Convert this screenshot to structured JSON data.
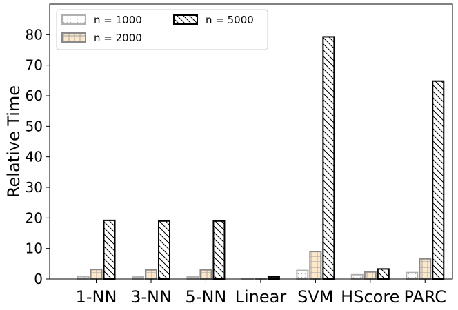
{
  "chart_data": {
    "type": "bar",
    "categories": [
      "1-NN",
      "3-NN",
      "5-NN",
      "Linear",
      "SVM",
      "HScore",
      "PARC"
    ],
    "series": [
      {
        "name": "n = 1000",
        "values": [
          0.8,
          0.7,
          0.7,
          0.1,
          2.8,
          1.4,
          2.1
        ],
        "fill": "#ffffff",
        "stroke": "#b0b0b0",
        "hatch": "dots"
      },
      {
        "name": "n = 2000",
        "values": [
          3.1,
          3.0,
          3.0,
          0.2,
          9.0,
          2.4,
          6.6
        ],
        "fill": "#fde8cc",
        "stroke": "#8a8a8a",
        "hatch": "grid"
      },
      {
        "name": "n = 5000",
        "values": [
          19.2,
          19.0,
          19.0,
          0.7,
          79.3,
          3.3,
          64.8
        ],
        "fill": "#ffffff",
        "stroke": "#000000",
        "hatch": "diagonal"
      }
    ],
    "xlabel": "",
    "ylabel": "Relative Time",
    "ylim": [
      0,
      90
    ],
    "yticks": [
      0,
      10,
      20,
      30,
      40,
      50,
      60,
      70,
      80
    ],
    "grid": false,
    "legend_position": "top-left"
  }
}
